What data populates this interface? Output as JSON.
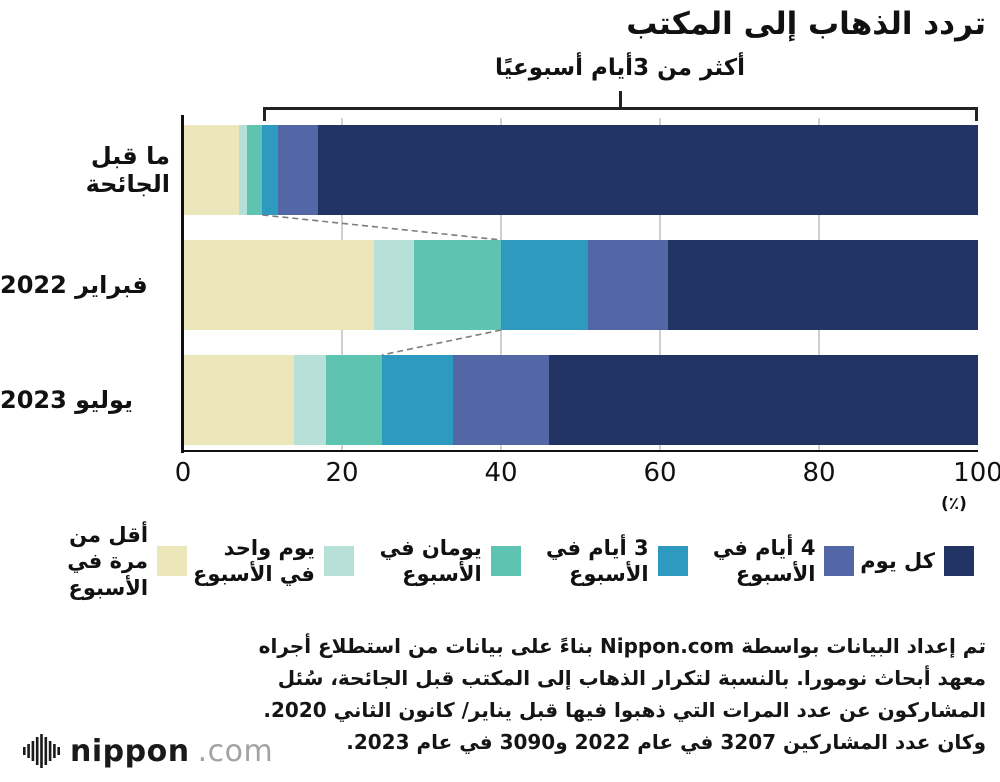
{
  "title": "تردد الذهاب إلى المكتب",
  "chart_data": {
    "type": "bar",
    "orientation": "horizontal",
    "stacked": true,
    "unit": "(٪)",
    "xlim": [
      0,
      100
    ],
    "x_ticks": [
      0,
      20,
      40,
      60,
      80,
      100
    ],
    "grid": true,
    "legend_position": "bottom",
    "categories": [
      "ما قبل الجائحة",
      "فبراير 2022",
      "يوليو 2023"
    ],
    "series": [
      {
        "name": "أقل من مرة في الأسبوع",
        "color": "#ece7bb",
        "values": [
          7,
          24,
          14
        ]
      },
      {
        "name": "يوم واحد في الأسبوع",
        "color": "#b7e0d8",
        "values": [
          1,
          5,
          4
        ]
      },
      {
        "name": "يومان في الأسبوع",
        "color": "#5ec3b1",
        "values": [
          2,
          11,
          7
        ]
      },
      {
        "name": "3 أيام في الأسبوع",
        "color": "#2e9abf",
        "values": [
          2,
          11,
          9
        ]
      },
      {
        "name": "4 أيام في الأسبوع",
        "color": "#5367a7",
        "values": [
          5,
          10,
          12
        ]
      },
      {
        "name": "كل يوم",
        "color": "#213463",
        "values": [
          83,
          39,
          54
        ]
      }
    ],
    "annotation": {
      "label": "أكثر من 3أيام أسبوعيًا",
      "start_pct": 10,
      "end_pct": 100,
      "connector_boundaries_pct": [
        10,
        40,
        25
      ]
    }
  },
  "source_note": "تم إعداد البيانات بواسطة Nippon.com بناءً على بيانات من استطلاع أجراه معهد أبحاث نومورا. بالنسبة لتكرار الذهاب إلى المكتب قبل الجائحة، سُئل المشاركون عن عدد المرات التي ذهبوا فيها قبل يناير/ كانون الثاني 2020. وكان عدد المشاركين 3207 في عام 2022 و3090 في عام 2023.",
  "logo": {
    "icon": "audio-wave-icon",
    "name": "nippon",
    "domain": ".com"
  }
}
